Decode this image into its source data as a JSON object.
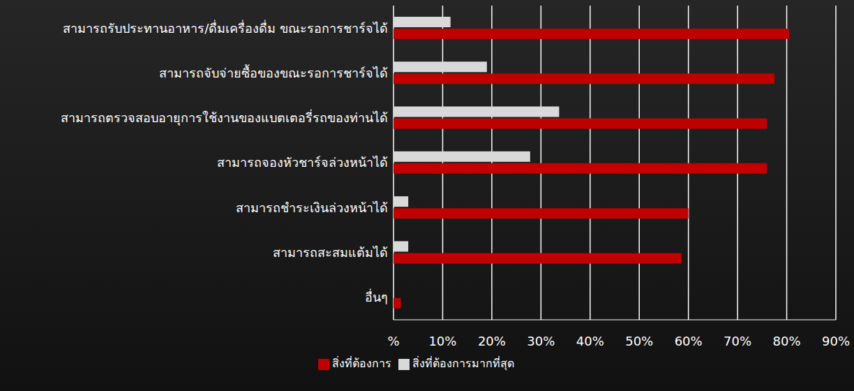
{
  "chart_data": {
    "type": "bar",
    "orientation": "horizontal",
    "categories": [
      "สามารถรับประทานอาหาร/ดื่มเครื่องดื่ม ขณะรอการชาร์จได้",
      "สามารถจับจ่ายซื้อของขณะรอการชาร์จได้",
      "สามารถตรวจสอบอายุการใช้งานของแบตเตอรี่รถของท่านได้",
      "สามารถจองหัวชาร์จล่วงหน้าได้",
      "สามารถชำระเงินล่วงหน้าได้",
      "สามารถสะสมแต้มได้",
      "อื่นๆ"
    ],
    "series": [
      {
        "name": "สิ่งที่ต้องการมากที่สุด",
        "color": "#d9d9d9",
        "values": [
          11.6,
          19,
          33.7,
          27.8,
          3,
          3,
          0
        ]
      },
      {
        "name": "สิ่งที่ต้องการ",
        "color": "#c00000",
        "values": [
          80.5,
          77.5,
          76,
          76,
          60,
          58.6,
          1.5
        ]
      }
    ],
    "xlim": [
      0,
      90
    ],
    "xticks": [
      {
        "value": 0,
        "label": "%"
      },
      {
        "value": 10,
        "label": "10%"
      },
      {
        "value": 20,
        "label": "20%"
      },
      {
        "value": 30,
        "label": "30%"
      },
      {
        "value": 40,
        "label": "40%"
      },
      {
        "value": 50,
        "label": "50%"
      },
      {
        "value": 60,
        "label": "60%"
      },
      {
        "value": 70,
        "label": "70%"
      },
      {
        "value": 80,
        "label": "80%"
      },
      {
        "value": 90,
        "label": "90%"
      }
    ],
    "grid": true,
    "legend": "bottom"
  }
}
